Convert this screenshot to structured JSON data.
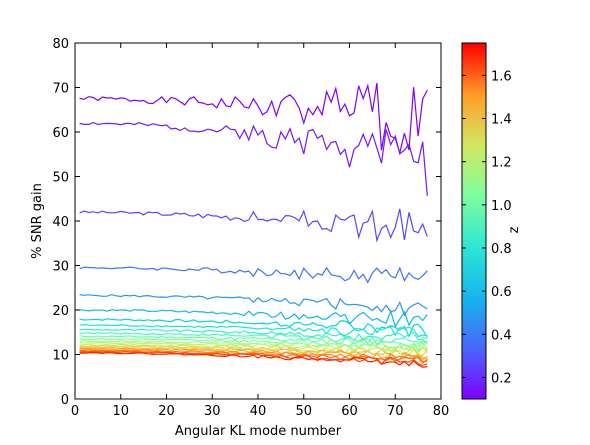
{
  "chart_data": {
    "type": "line",
    "xlabel": "Angular KL mode number",
    "ylabel": "% SNR gain",
    "xlim": [
      0,
      80
    ],
    "ylim": [
      0,
      80
    ],
    "xticks": [
      "0",
      "10",
      "20",
      "30",
      "40",
      "50",
      "60",
      "70",
      "80"
    ],
    "yticks": [
      "0",
      "10",
      "20",
      "30",
      "40",
      "50",
      "60",
      "70",
      "80"
    ],
    "x_range_of_series": [
      1,
      77
    ],
    "grid": false,
    "legend": "none",
    "colorbar": {
      "label": "z",
      "range": [
        0.1,
        1.75
      ],
      "ticks": [
        "0.2",
        "0.4",
        "0.6",
        "0.8",
        "1.0",
        "1.2",
        "1.4",
        "1.6"
      ],
      "colormap": "rainbow"
    },
    "series": [
      {
        "z": 0.1,
        "color": "#8000ff",
        "base": 67.5,
        "slope_end": 63,
        "noise_start": 0.5,
        "noise_end": 8,
        "seed": 1
      },
      {
        "z": 0.2,
        "color": "#7318ff",
        "base": 62,
        "slope_end": 55,
        "noise_start": 0.4,
        "noise_end": 6,
        "seed": 2
      },
      {
        "z": 0.3,
        "color": "#5a47fc",
        "base": 42,
        "slope_end": 38,
        "noise_start": 0.3,
        "noise_end": 3.5,
        "seed": 3
      },
      {
        "z": 0.4,
        "color": "#4171f8",
        "base": 29.5,
        "slope_end": 27,
        "noise_start": 0.25,
        "noise_end": 2.5,
        "seed": 4
      },
      {
        "z": 0.5,
        "color": "#2a97f2",
        "base": 23.3,
        "slope_end": 20.5,
        "noise_start": 0.2,
        "noise_end": 1.8,
        "seed": 5
      },
      {
        "z": 0.6,
        "color": "#12b9ea",
        "base": 20.0,
        "slope_end": 17.5,
        "noise_start": 0.2,
        "noise_end": 1.5,
        "seed": 6
      },
      {
        "z": 0.7,
        "color": "#06d6e1",
        "base": 17.9,
        "slope_end": 15.6,
        "noise_start": 0.2,
        "noise_end": 1.3,
        "seed": 7
      },
      {
        "z": 0.8,
        "color": "#1ee4d8",
        "base": 16.6,
        "slope_end": 14.5,
        "noise_start": 0.15,
        "noise_end": 1.2,
        "seed": 8
      },
      {
        "z": 0.9,
        "color": "#36f0cb",
        "base": 15.6,
        "slope_end": 13.6,
        "noise_start": 0.15,
        "noise_end": 1.1,
        "seed": 9
      },
      {
        "z": 1.0,
        "color": "#52f9b9",
        "base": 14.8,
        "slope_end": 12.9,
        "noise_start": 0.15,
        "noise_end": 1.0,
        "seed": 10
      },
      {
        "z": 1.1,
        "color": "#6cfda8",
        "base": 14.1,
        "slope_end": 12.3,
        "noise_start": 0.15,
        "noise_end": 1.0,
        "seed": 11
      },
      {
        "z": 1.2,
        "color": "#86fe98",
        "base": 13.5,
        "slope_end": 11.8,
        "noise_start": 0.12,
        "noise_end": 0.95,
        "seed": 12
      },
      {
        "z": 1.25,
        "color": "#a0fb86",
        "base": 13.0,
        "slope_end": 11.3,
        "noise_start": 0.12,
        "noise_end": 0.9,
        "seed": 13
      },
      {
        "z": 1.3,
        "color": "#baf575",
        "base": 12.6,
        "slope_end": 10.9,
        "noise_start": 0.12,
        "noise_end": 0.9,
        "seed": 14
      },
      {
        "z": 1.35,
        "color": "#d0e862",
        "base": 12.2,
        "slope_end": 10.5,
        "noise_start": 0.12,
        "noise_end": 0.85,
        "seed": 15
      },
      {
        "z": 1.4,
        "color": "#e2d750",
        "base": 11.9,
        "slope_end": 10.1,
        "noise_start": 0.12,
        "noise_end": 0.85,
        "seed": 16
      },
      {
        "z": 1.45,
        "color": "#f0c23e",
        "base": 11.6,
        "slope_end": 9.8,
        "noise_start": 0.12,
        "noise_end": 0.8,
        "seed": 17
      },
      {
        "z": 1.5,
        "color": "#f9a92c",
        "base": 11.3,
        "slope_end": 9.4,
        "noise_start": 0.12,
        "noise_end": 0.8,
        "seed": 18
      },
      {
        "z": 1.55,
        "color": "#ff8c1c",
        "base": 11.0,
        "slope_end": 9.0,
        "noise_start": 0.12,
        "noise_end": 0.8,
        "seed": 19
      },
      {
        "z": 1.6,
        "color": "#ff6b0f",
        "base": 10.8,
        "slope_end": 8.6,
        "noise_start": 0.12,
        "noise_end": 0.75,
        "seed": 20
      },
      {
        "z": 1.65,
        "color": "#ff4a06",
        "base": 10.6,
        "slope_end": 8.2,
        "noise_start": 0.12,
        "noise_end": 0.75,
        "seed": 21
      },
      {
        "z": 1.75,
        "color": "#ff1e00",
        "base": 10.4,
        "slope_end": 7.8,
        "noise_start": 0.12,
        "noise_end": 0.7,
        "seed": 22
      }
    ]
  }
}
